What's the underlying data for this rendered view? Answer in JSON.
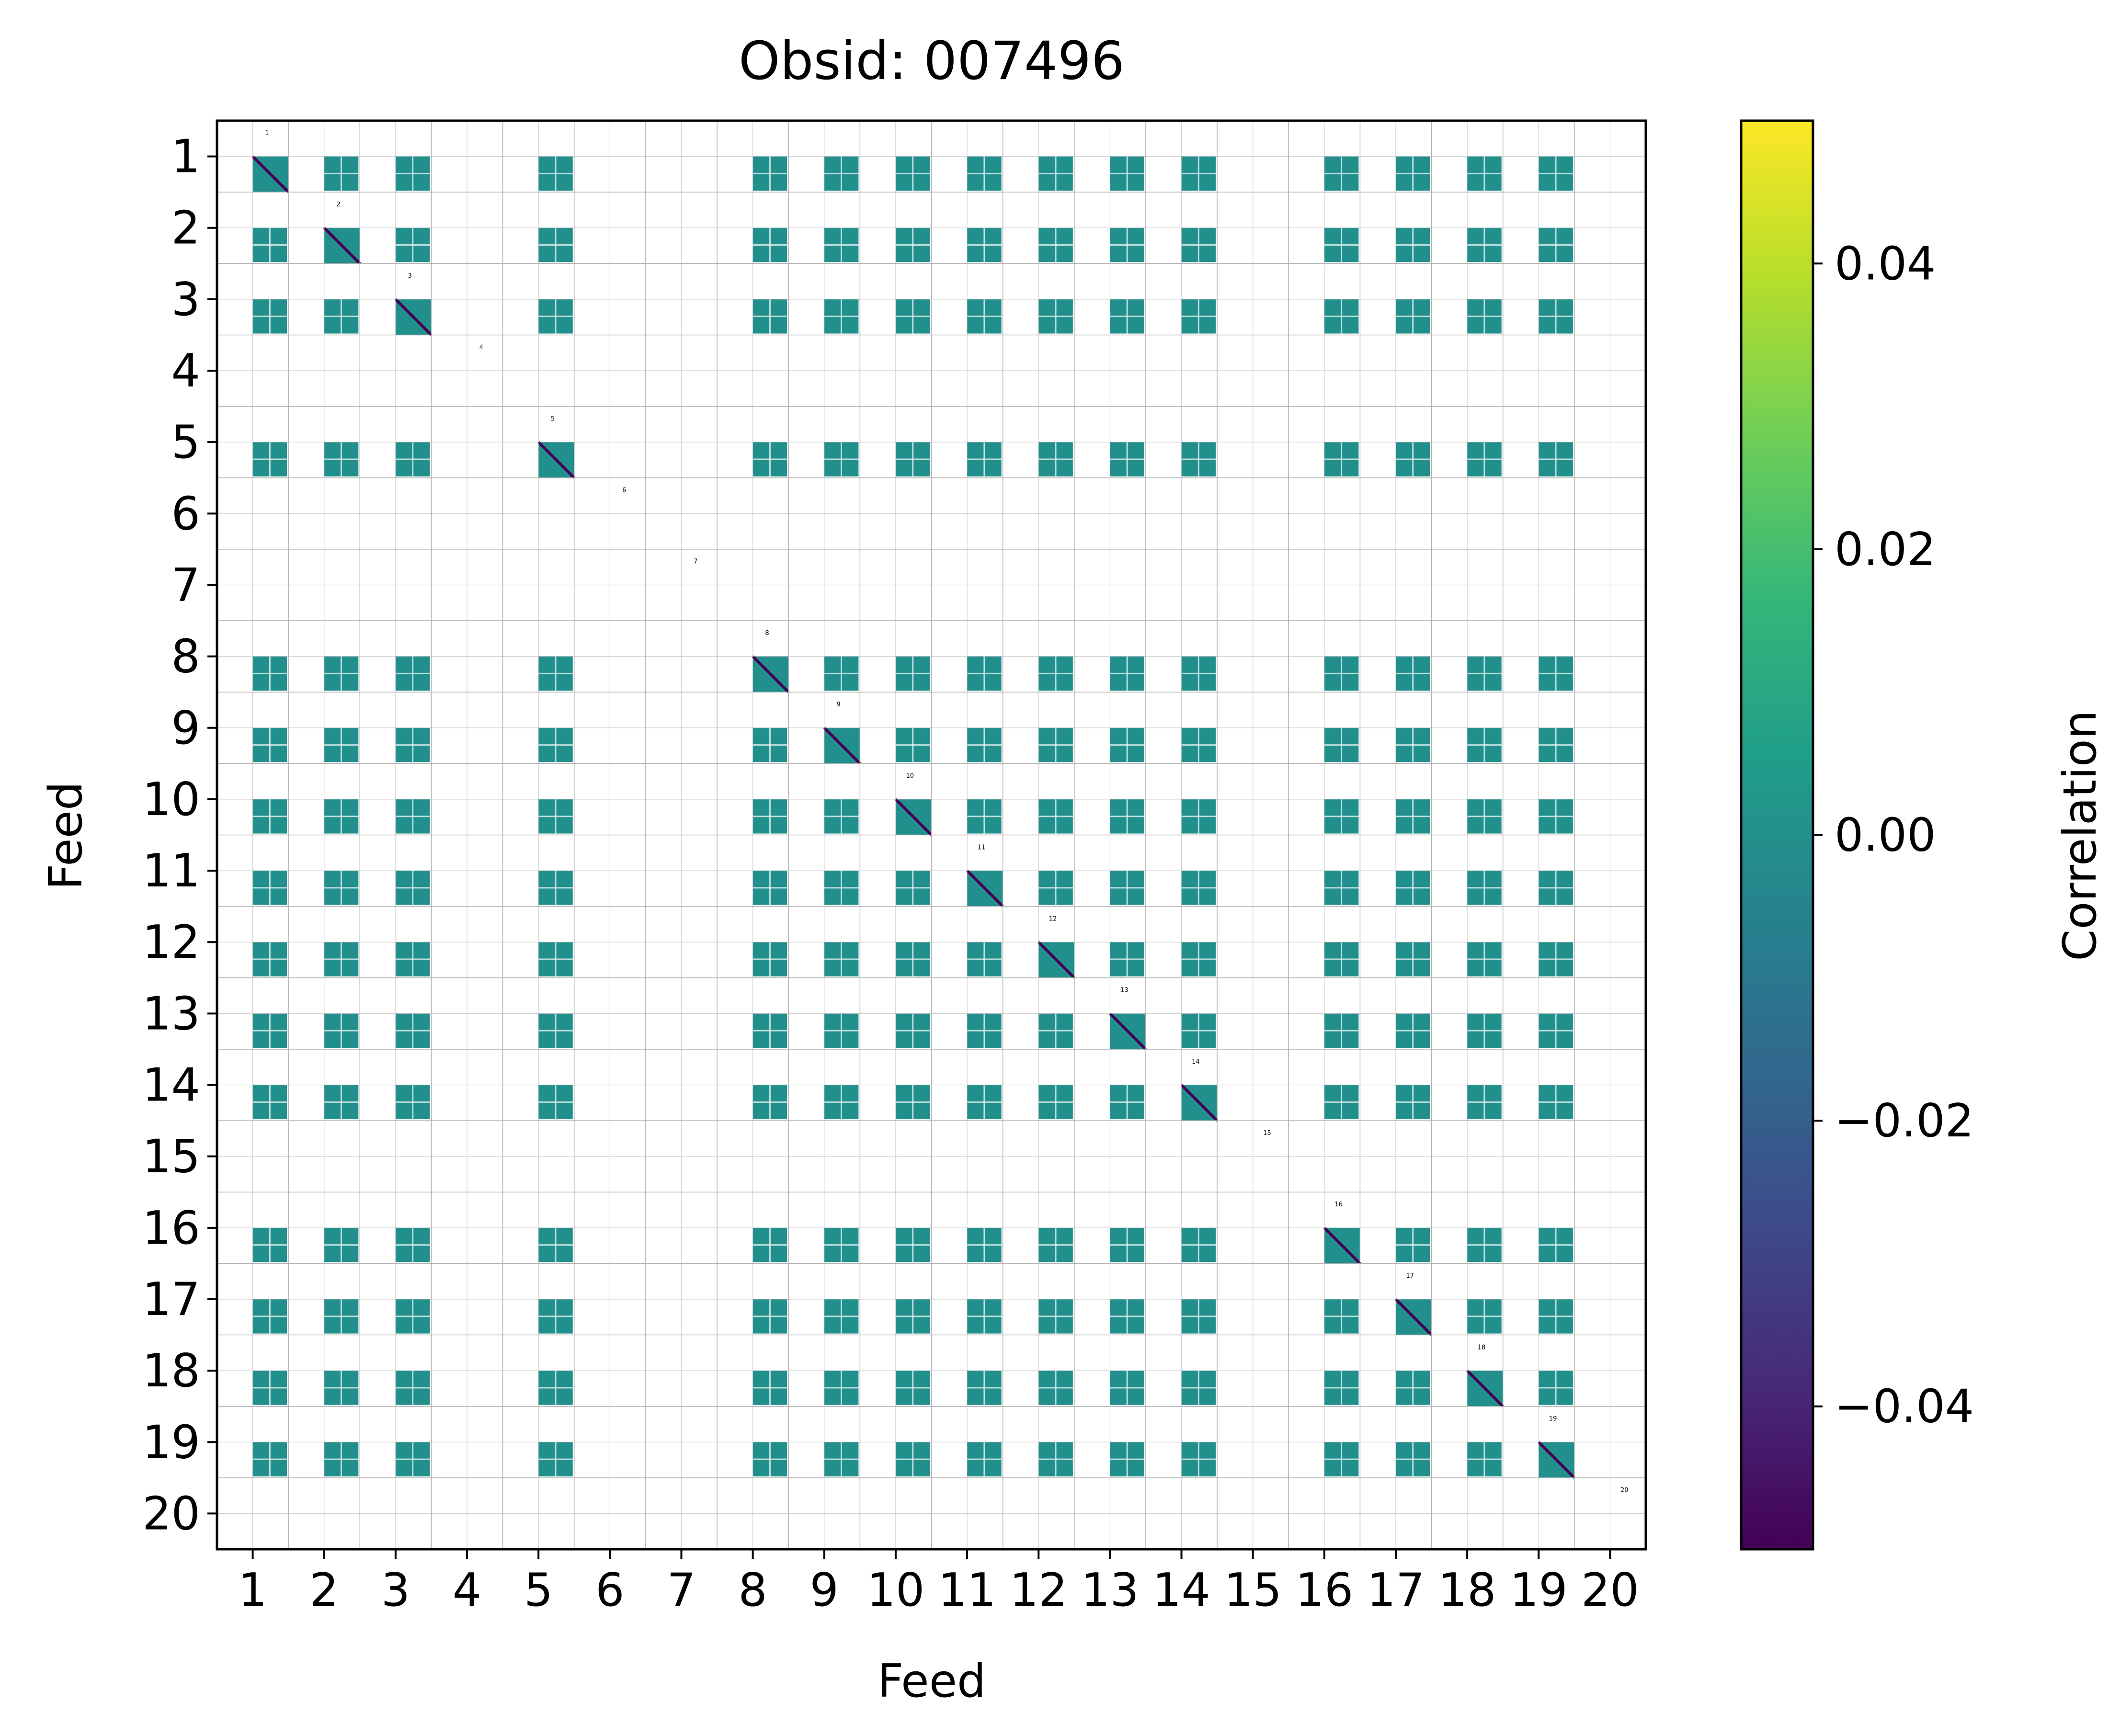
{
  "chart_data": {
    "type": "heatmap",
    "title": "Obsid: 007496",
    "xlabel": "Feed",
    "ylabel": "Feed",
    "feeds": [
      1,
      2,
      3,
      4,
      5,
      6,
      7,
      8,
      9,
      10,
      11,
      12,
      13,
      14,
      15,
      16,
      17,
      18,
      19,
      20
    ],
    "x_tick_labels": [
      "1",
      "2",
      "3",
      "4",
      "5",
      "6",
      "7",
      "8",
      "9",
      "10",
      "11",
      "12",
      "13",
      "14",
      "15",
      "16",
      "17",
      "18",
      "19",
      "20"
    ],
    "y_tick_labels": [
      "1",
      "2",
      "3",
      "4",
      "5",
      "6",
      "7",
      "8",
      "9",
      "10",
      "11",
      "12",
      "13",
      "14",
      "15",
      "16",
      "17",
      "18",
      "19",
      "20"
    ],
    "diagonal_labels": [
      "1",
      "2",
      "3",
      "4",
      "5",
      "6",
      "7",
      "8",
      "9",
      "10",
      "11",
      "12",
      "13",
      "14",
      "15",
      "16",
      "17",
      "18",
      "19",
      "20"
    ],
    "active_feeds": [
      1,
      2,
      3,
      5,
      8,
      9,
      10,
      11,
      12,
      13,
      14,
      16,
      17,
      18,
      19
    ],
    "masked_feeds": [
      4,
      6,
      7,
      15,
      20
    ],
    "off_diagonal_correlation": 0.0,
    "diagonal_correlation": -0.05,
    "colorbar": {
      "label": "Correlation",
      "vmin": -0.05,
      "vmax": 0.05,
      "ticks": [
        -0.04,
        -0.02,
        0.0,
        0.02,
        0.04
      ],
      "tick_labels": [
        "−0.04",
        "−0.02",
        "0.00",
        "0.02",
        "0.04"
      ],
      "colormap": "viridis",
      "colormap_stops": [
        "#440154",
        "#482878",
        "#3e4989",
        "#31688e",
        "#26828e",
        "#1f9e89",
        "#35b779",
        "#6ece58",
        "#b5de2b",
        "#fde725"
      ]
    },
    "colors": {
      "off_diagonal": "#21908d",
      "diagonal": "#440154",
      "grid": "#b0b0b0",
      "background": "#ffffff"
    }
  }
}
